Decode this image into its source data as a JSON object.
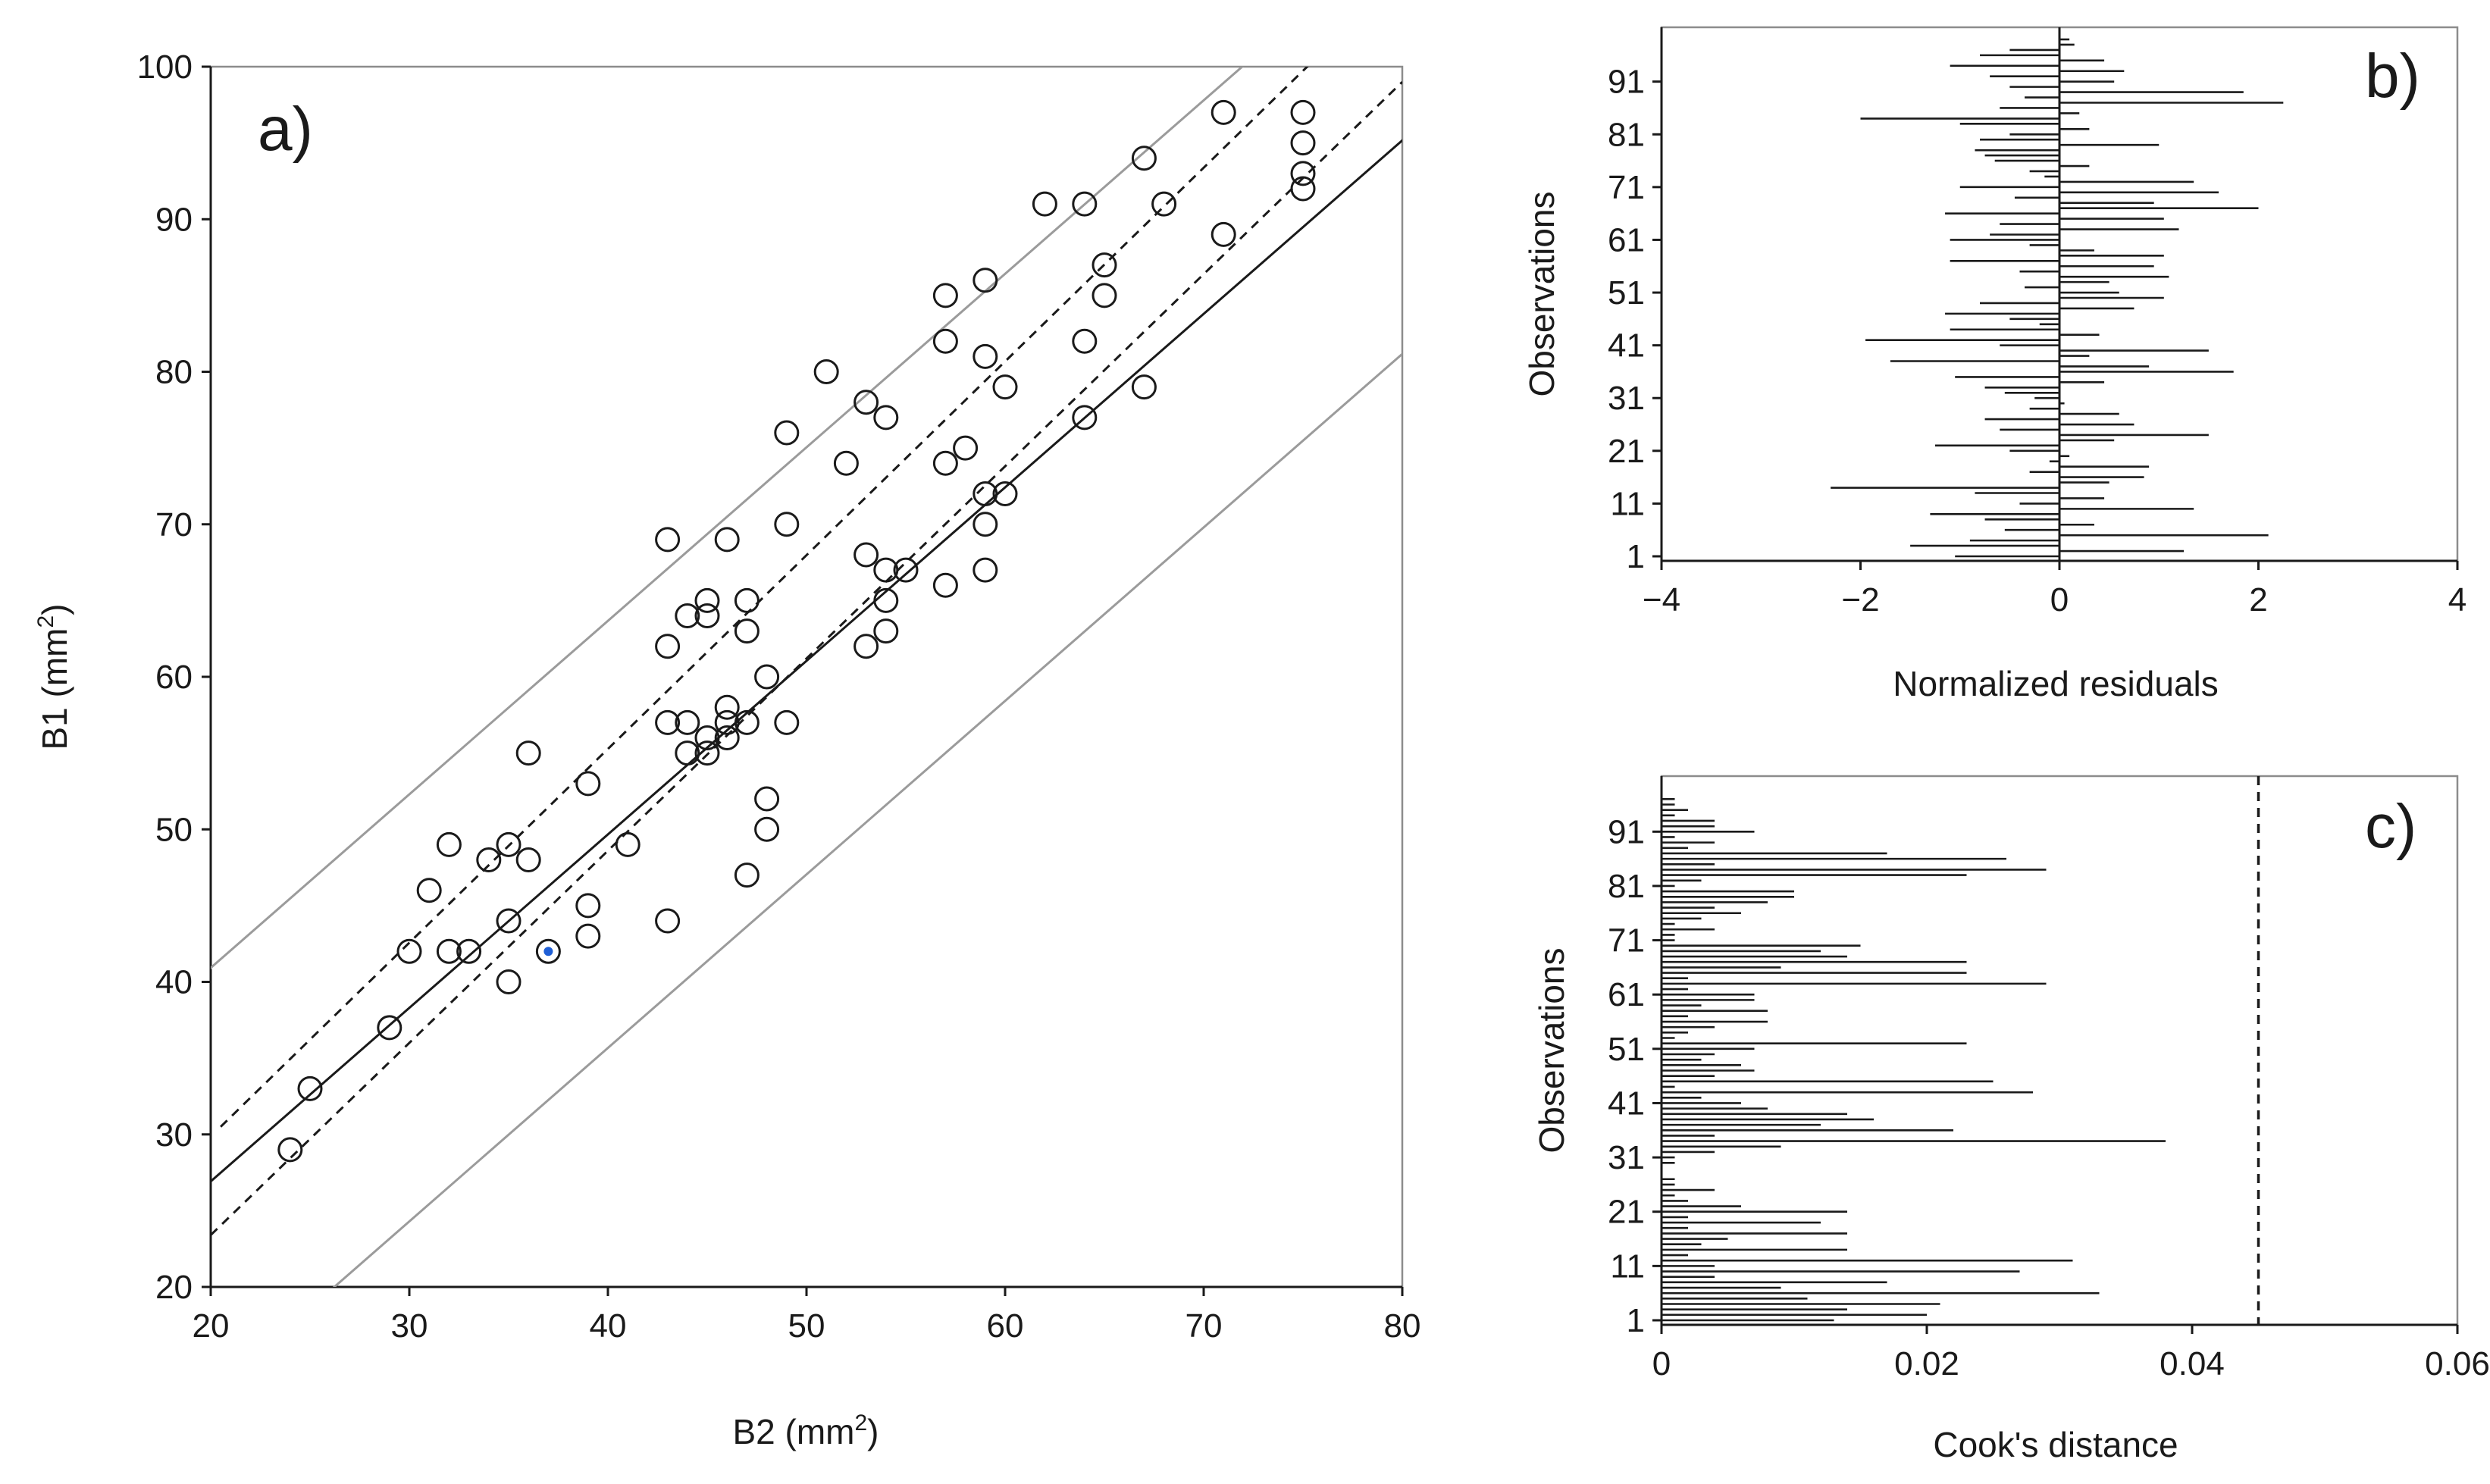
{
  "chart_data": [
    {
      "id": "a",
      "type": "scatter",
      "panel_label": "a)",
      "xlabel_main": "B2 (mm",
      "xlabel_sup": "2",
      "xlabel_end": ")",
      "ylabel_main": "B1 (mm",
      "ylabel_sup": "2",
      "ylabel_end": ")",
      "xlim": [
        20,
        80
      ],
      "ylim": [
        20,
        100
      ],
      "xticks": [
        20,
        30,
        40,
        50,
        60,
        70,
        80
      ],
      "yticks": [
        20,
        30,
        40,
        50,
        60,
        70,
        80,
        90,
        100
      ],
      "x": [
        24,
        25,
        29,
        30,
        31,
        32,
        32,
        33,
        34,
        35,
        35,
        35,
        36,
        36,
        37,
        39,
        39,
        39,
        41,
        43,
        43,
        43,
        43,
        44,
        44,
        44,
        45,
        45,
        45,
        45,
        46,
        46,
        46,
        46,
        47,
        47,
        47,
        47,
        48,
        48,
        48,
        49,
        49,
        49,
        51,
        52,
        53,
        53,
        53,
        54,
        54,
        54,
        54,
        55,
        57,
        57,
        57,
        57,
        58,
        59,
        59,
        59,
        59,
        59,
        60,
        60,
        62,
        64,
        64,
        64,
        65,
        65,
        67,
        67,
        68,
        71,
        71,
        75,
        75,
        75,
        75
      ],
      "y": [
        29,
        33,
        37,
        42,
        46,
        49,
        42,
        42,
        48,
        49,
        44,
        40,
        55,
        48,
        42,
        53,
        45,
        43,
        49,
        69,
        62,
        57,
        44,
        64,
        57,
        55,
        65,
        64,
        56,
        55,
        69,
        58,
        57,
        56,
        65,
        63,
        57,
        47,
        60,
        52,
        50,
        76,
        70,
        57,
        80,
        74,
        78,
        68,
        62,
        77,
        67,
        65,
        63,
        67,
        85,
        82,
        74,
        66,
        75,
        86,
        81,
        72,
        70,
        67,
        79,
        72,
        91,
        91,
        82,
        77,
        87,
        85,
        94,
        79,
        91,
        97,
        89,
        97,
        95,
        93,
        92
      ],
      "highlighted_point": {
        "x": 37,
        "y": 42
      },
      "regression": {
        "intercept": 4.17,
        "slope": 1.1375
      },
      "confidence_band": {
        "type": "dashed",
        "upper_at": [
          [
            20.5,
            30.5
          ],
          [
            76,
            101
          ]
        ],
        "lower_at": [
          [
            20,
            23.4
          ],
          [
            80,
            99
          ]
        ]
      },
      "prediction_band": {
        "type": "solid-gray",
        "offset": 14
      }
    },
    {
      "id": "b",
      "type": "bar",
      "orientation": "horizontal",
      "panel_label": "b)",
      "xlabel": "Normalized residuals",
      "ylabel": "Observations",
      "xlim": [
        -4,
        4
      ],
      "xticks": [
        -4,
        -2,
        0,
        2,
        4
      ],
      "ytick_labels": [
        "1",
        "11",
        "21",
        "31",
        "41",
        "51",
        "61",
        "71",
        "81",
        "91"
      ],
      "values": [
        -1.05,
        1.25,
        -1.5,
        -0.9,
        2.1,
        -0.55,
        0.35,
        -0.75,
        -1.3,
        1.35,
        -0.4,
        0.45,
        -0.85,
        -2.3,
        0.5,
        0.85,
        -0.3,
        0.9,
        -0.1,
        0.1,
        -0.5,
        -1.25,
        0.55,
        1.5,
        -0.6,
        0.75,
        -0.75,
        0.6,
        -0.3,
        0.05,
        -0.25,
        -0.55,
        -0.75,
        0.45,
        -1.05,
        1.75,
        0.9,
        -1.7,
        0.3,
        1.5,
        -0.6,
        -1.95,
        0.4,
        -1.1,
        -0.2,
        -0.5,
        -1.15,
        0.75,
        -0.8,
        1.05,
        0.6,
        -0.35,
        0.5,
        1.1,
        -0.4,
        0.95,
        -1.1,
        1.05,
        0.35,
        -0.3,
        -1.1,
        -0.7,
        1.2,
        -0.6,
        1.05,
        -1.15,
        2.0,
        0.95,
        -0.45,
        1.6,
        -1.0,
        1.35,
        -0.15,
        -0.3,
        0.3,
        -0.65,
        -0.75,
        -0.85,
        1.0,
        -0.8,
        -0.5,
        0.3,
        -1.0,
        -2.0,
        0.2,
        -0.6,
        2.25,
        -0.35,
        1.85,
        -0.5,
        0.55,
        -0.7,
        0.65,
        -1.1,
        0.45,
        -0.8,
        -0.5,
        0.15,
        0.1
      ]
    },
    {
      "id": "c",
      "type": "bar",
      "orientation": "horizontal",
      "panel_label": "c)",
      "xlabel": "Cook's distance",
      "ylabel": "Observations",
      "xlim": [
        0,
        0.06
      ],
      "xticks": [
        0,
        0.02,
        0.04,
        0.06
      ],
      "xtick_labels": [
        "0",
        "0.02",
        "0.04",
        "0.06"
      ],
      "ytick_labels": [
        "1",
        "11",
        "21",
        "31",
        "41",
        "51",
        "61",
        "71",
        "81",
        "91"
      ],
      "threshold": 0.045,
      "values": [
        0.013,
        0.02,
        0.014,
        0.021,
        0.011,
        0.033,
        0.009,
        0.017,
        0.004,
        0.027,
        0.004,
        0.031,
        0.002,
        0.014,
        0.003,
        0.005,
        0.014,
        0.002,
        0.012,
        0.002,
        0.014,
        0.006,
        0.002,
        0.001,
        0.004,
        0.001,
        0.001,
        0.0,
        0.0,
        0.001,
        0.001,
        0.004,
        0.009,
        0.038,
        0.004,
        0.022,
        0.012,
        0.016,
        0.014,
        0.008,
        0.006,
        0.003,
        0.028,
        0.001,
        0.025,
        0.004,
        0.007,
        0.006,
        0.003,
        0.004,
        0.007,
        0.023,
        0.001,
        0.002,
        0.004,
        0.008,
        0.002,
        0.008,
        0.003,
        0.007,
        0.007,
        0.002,
        0.029,
        0.002,
        0.023,
        0.009,
        0.023,
        0.014,
        0.012,
        0.015,
        0.001,
        0.001,
        0.004,
        0.001,
        0.003,
        0.006,
        0.004,
        0.008,
        0.01,
        0.01,
        0.001,
        0.003,
        0.023,
        0.029,
        0.004,
        0.026,
        0.017,
        0.002,
        0.004,
        0.001,
        0.007,
        0.004,
        0.004,
        0.001,
        0.002,
        0.001,
        0.001,
        0.0,
        0.0
      ]
    }
  ]
}
